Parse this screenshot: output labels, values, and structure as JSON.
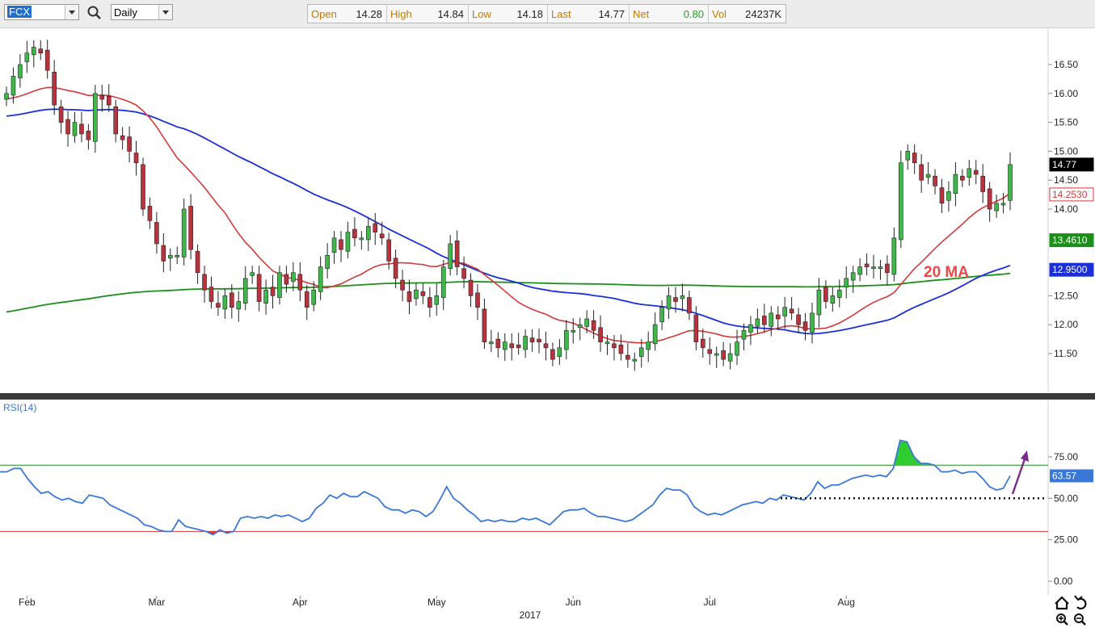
{
  "toolbar": {
    "symbol": "FCX",
    "interval": "Daily",
    "quote": [
      {
        "label": "Open",
        "value": "14.28"
      },
      {
        "label": "High",
        "value": "14.84"
      },
      {
        "label": "Low",
        "value": "14.18"
      },
      {
        "label": "Last",
        "value": "14.77"
      },
      {
        "label": "Net",
        "value": "0.80"
      },
      {
        "label": "Vol",
        "value": "24237K"
      }
    ],
    "net_color": "#1fa61f"
  },
  "colors": {
    "up": "#3fb84a",
    "down": "#b8333d",
    "ma20": "#d43a3a",
    "ma50": "#1a2fd6",
    "ma200": "#1a8f1a",
    "rsi": "#3a78d8",
    "annotation": "#e84a4a",
    "arrow": "#7a2a8a"
  },
  "chart_data": [
    {
      "type": "candlestick",
      "symbol": "FCX",
      "x_labels": [
        "Feb",
        "Mar",
        "Apr",
        "May",
        "Jun",
        "Jul",
        "Aug"
      ],
      "year_label": "2017",
      "ylim": [
        10.8,
        17.0
      ],
      "y_ticks": [
        "16.50",
        "16.00",
        "15.50",
        "15.00",
        "14.50",
        "14.00",
        "12.50",
        "12.00",
        "11.50"
      ],
      "price_labels": {
        "last": "14.77",
        "ma20": "14.2530",
        "ma200": "13.4610",
        "ma50": "12.9500"
      },
      "annotation": "20 MA",
      "closes": [
        16.0,
        16.3,
        16.5,
        16.7,
        16.8,
        16.7,
        16.4,
        15.8,
        15.5,
        15.3,
        15.5,
        15.3,
        15.2,
        16.0,
        15.9,
        15.8,
        15.3,
        15.2,
        15.0,
        14.8,
        14.0,
        13.8,
        13.4,
        13.1,
        13.2,
        13.2,
        14.0,
        13.3,
        12.9,
        12.6,
        12.4,
        12.3,
        12.5,
        12.3,
        12.4,
        12.8,
        12.9,
        12.4,
        12.6,
        12.5,
        12.9,
        12.7,
        12.9,
        12.6,
        12.3,
        12.6,
        13.0,
        13.2,
        13.5,
        13.3,
        13.6,
        13.5,
        13.5,
        13.7,
        13.6,
        13.5,
        13.1,
        12.8,
        12.6,
        12.4,
        12.6,
        12.5,
        12.3,
        12.5,
        13.0,
        13.4,
        13.0,
        12.8,
        12.5,
        12.3,
        11.7,
        11.7,
        11.6,
        11.7,
        11.6,
        11.6,
        11.8,
        11.7,
        11.7,
        11.6,
        11.4,
        11.6,
        11.9,
        11.9,
        12.0,
        12.1,
        11.9,
        11.7,
        11.7,
        11.6,
        11.5,
        11.4,
        11.4,
        11.6,
        11.7,
        12.0,
        12.3,
        12.5,
        12.4,
        12.5,
        12.2,
        11.7,
        11.6,
        11.5,
        11.5,
        11.4,
        11.5,
        11.7,
        11.9,
        12.0,
        12.1,
        12.0,
        12.2,
        12.1,
        12.3,
        12.2,
        12.0,
        11.9,
        12.2,
        12.6,
        12.4,
        12.5,
        12.6,
        12.8,
        12.9,
        13.0,
        13.0,
        13.0,
        13.0,
        12.9,
        13.5,
        14.8,
        15.0,
        14.8,
        14.5,
        14.6,
        14.4,
        14.1,
        14.3,
        14.6,
        14.5,
        14.7,
        14.6,
        14.3,
        14.0,
        14.1,
        14.1,
        14.77
      ],
      "series": [
        {
          "name": "20 MA"
        }
      ],
      "rsi": {
        "label": "RSI(14)",
        "last_label": "63.57",
        "y_ticks": [
          "75.00",
          "50.00",
          "25.00",
          "0.00"
        ],
        "overbought": 70,
        "oversold": 30,
        "support": 50,
        "values": [
          66,
          66,
          68,
          68,
          62,
          57,
          53,
          54,
          51,
          49,
          50,
          48,
          47,
          52,
          51,
          50,
          46,
          44,
          42,
          40,
          38,
          34,
          33,
          31,
          30,
          30,
          37,
          33,
          32,
          31,
          30,
          28,
          31,
          29,
          30,
          38,
          39,
          38,
          39,
          38,
          40,
          39,
          40,
          38,
          36,
          38,
          44,
          47,
          52,
          50,
          53,
          51,
          51,
          54,
          52,
          50,
          45,
          43,
          43,
          41,
          43,
          42,
          39,
          42,
          49,
          57,
          50,
          47,
          43,
          40,
          36,
          37,
          36,
          37,
          36,
          36,
          38,
          37,
          38,
          36,
          34,
          38,
          42,
          43,
          43,
          44,
          41,
          39,
          39,
          38,
          37,
          36,
          37,
          40,
          43,
          46,
          52,
          56,
          55,
          55,
          52,
          45,
          42,
          40,
          41,
          40,
          42,
          44,
          46,
          47,
          48,
          47,
          50,
          49,
          52,
          51,
          50,
          49,
          53,
          60,
          56,
          58,
          58,
          60,
          62,
          63,
          64,
          63,
          64,
          63,
          68,
          85,
          84,
          75,
          71,
          71,
          70,
          66,
          66,
          67,
          65,
          66,
          66,
          62,
          57,
          55,
          56,
          63.57
        ]
      },
      "legend_placement": "none"
    }
  ]
}
